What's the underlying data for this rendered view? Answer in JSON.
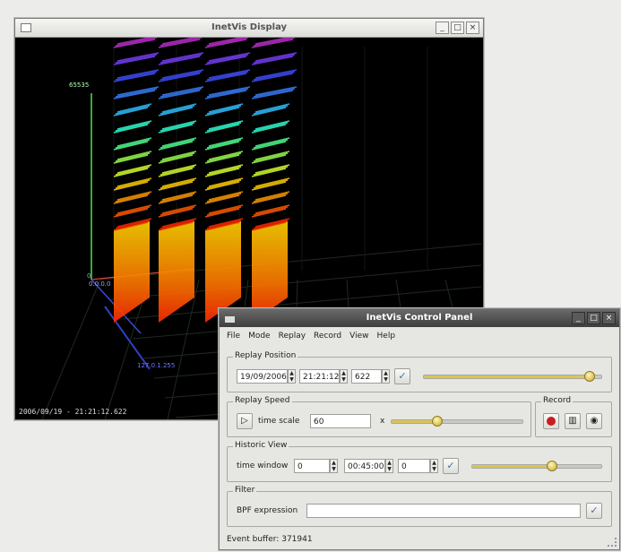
{
  "display": {
    "title": "InetVis Display",
    "axis_top_label": "65535",
    "axis_origin_label": "0.0.0.0",
    "axis_origin_sub": "0",
    "axis_bottom_label": "127.0.1.255",
    "timestamp": "2006/09/19 - 21:21:12.622"
  },
  "control": {
    "title": "InetVis Control Panel",
    "menu": [
      "File",
      "Mode",
      "Replay",
      "Record",
      "View",
      "Help"
    ],
    "replay_position": {
      "label": "Replay Position",
      "date": "19/09/2006",
      "time": "21:21:12",
      "ms": "622",
      "slider_level": 0.93
    },
    "replay_speed": {
      "label": "Replay Speed",
      "scale_label": "time scale",
      "scale_value": "60",
      "unit": "x",
      "slider_level": 0.34
    },
    "record": {
      "label": "Record"
    },
    "historic_view": {
      "label": "Historic View",
      "window_label": "time window",
      "window_value": "0",
      "window_time": "00:45:00",
      "window_extra": "0",
      "slider_level": 0.61
    },
    "filter": {
      "label": "Filter",
      "bpf_label": "BPF expression",
      "bpf_value": ""
    },
    "status": "Event buffer: 371941"
  },
  "colors": {
    "accent": "#d8c45a",
    "record_red": "#c81e1e",
    "display_bg": "#000000"
  },
  "icons": [
    "window-menu-icon",
    "minimize-icon",
    "maximize-icon",
    "close-icon",
    "play-icon",
    "apply-check-icon",
    "record-icon",
    "film-icon",
    "camera-icon"
  ]
}
